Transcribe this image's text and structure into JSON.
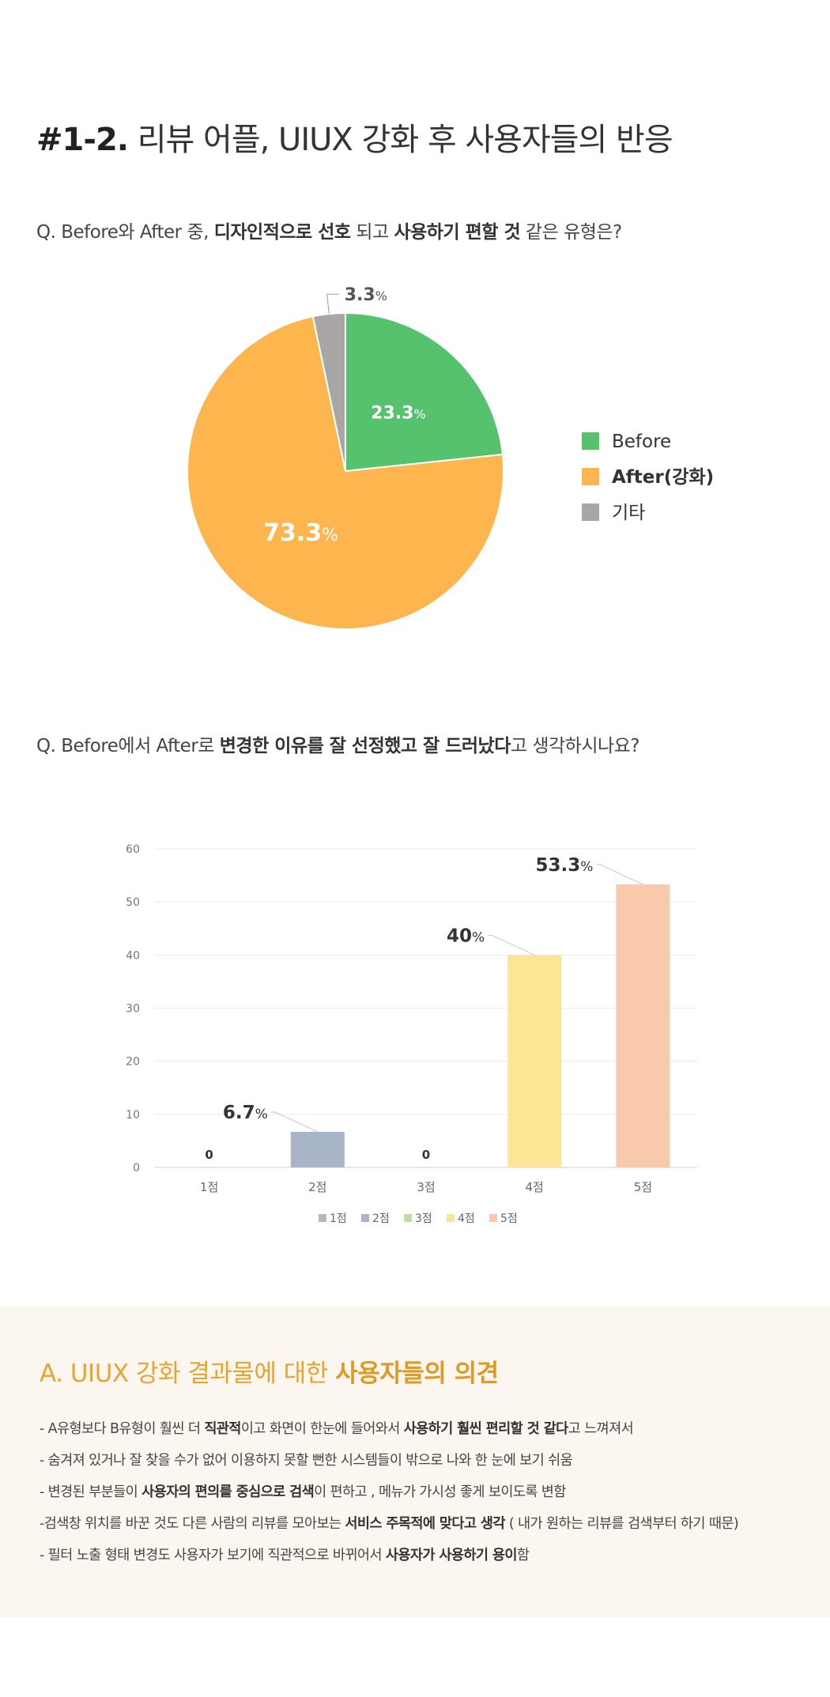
{
  "header": {
    "number": "#1-2.",
    "title": "리뷰 어플, UIUX 강화 후 사용자들의 반응"
  },
  "question1": {
    "p1": "Q. Before와 After 중, ",
    "b1": "디자인적으로 선호",
    "p2": " 되고 ",
    "b2": "사용하기 편할 것",
    "p3": " 같은 유형은?"
  },
  "question2": {
    "p1": "Q. Before에서 After로 ",
    "b1": "변경한 이유를 잘 선정했고 잘 드러났다",
    "p2": "고 생각하시나요?"
  },
  "chart_data": [
    {
      "type": "pie",
      "title": "",
      "slices": [
        {
          "label": "Before",
          "value": 23.3,
          "display": "23.3",
          "color": "#56c26e"
        },
        {
          "label": "After(강화)",
          "value": 73.3,
          "display": "73.3",
          "color": "#fdb54e"
        },
        {
          "label": "기타",
          "value": 3.3,
          "display": "3.3",
          "color": "#a9a7a6"
        }
      ],
      "unit": "%",
      "legend": "right"
    },
    {
      "type": "bar",
      "title": "",
      "categories": [
        "1점",
        "2점",
        "3점",
        "4점",
        "5점"
      ],
      "values": [
        0,
        6.7,
        0,
        40,
        53.3
      ],
      "labels": [
        "0",
        "6.7",
        "0",
        "40",
        "53.3"
      ],
      "unit": "%",
      "colors": [
        "#b7b7b7",
        "#a8b4c8",
        "#bfdcab",
        "#fee596",
        "#f8c9aa"
      ],
      "ylim": [
        0,
        60
      ],
      "yticks": [
        0,
        10,
        20,
        30,
        40,
        50,
        60
      ],
      "grid": true,
      "legend": "bottom"
    }
  ],
  "opinions": {
    "heading_plain": "A. UIUX 강화 결과물에 대한 ",
    "heading_bold": "사용자들의 의견",
    "items": [
      {
        "a": "- A유형보다 B유형이 훨씬 더 ",
        "b": "직관적",
        "c": "이고 화면이 한눈에 들어와서 ",
        "d": "사용하기 훨씬 편리할 것 같다",
        "e": "고 느껴져서"
      },
      {
        "a": "- 숨겨져 있거나 잘 찾을 수가 없어 이용하지 못할 뻔한 시스템들이 밖으로 나와 한 눈에 보기 쉬움"
      },
      {
        "a": "- 변경된 부분들이 ",
        "b": "사용자의 편의를 중심으로 검색",
        "c": "이 편하고 , 메뉴가 가시성 좋게 보이도록 변함"
      },
      {
        "a": "-검색창 위치를 바꾼 것도 다른 사람의 리뷰를 모아보는 ",
        "b": "서비스 주목적에 맞다고 생각",
        "c": " ( 내가 원하는 리뷰를 검색부터 하기 때문)"
      },
      {
        "a": "- 필터 노출 형태 변경도 사용자가 보기에 직관적으로 바뀌어서 ",
        "b": "사용자가 사용하기 용이",
        "c": "함"
      }
    ]
  }
}
